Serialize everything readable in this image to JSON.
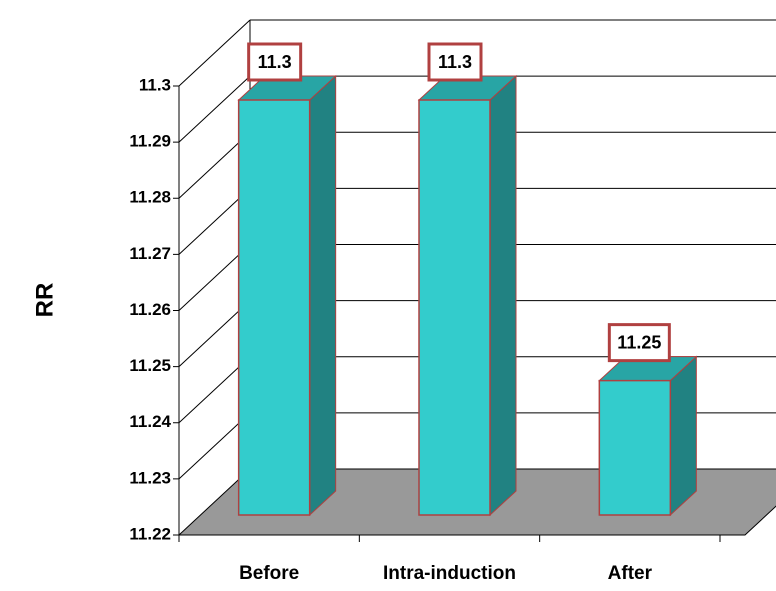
{
  "chart_data": {
    "type": "bar",
    "style": "3d-column",
    "categories": [
      "Before",
      "Intra-induction",
      "After"
    ],
    "values": [
      11.3,
      11.3,
      11.25
    ],
    "data_labels": [
      "11.3",
      "11.3",
      "11.25"
    ],
    "title": "",
    "xlabel": "",
    "ylabel": "RR",
    "ylim": [
      11.22,
      11.3
    ],
    "yticks": [
      "11.22",
      "11.23",
      "11.24",
      "11.25",
      "11.26",
      "11.27",
      "11.28",
      "11.29",
      "11.3"
    ],
    "grid": true,
    "legend": "none"
  },
  "colors": {
    "bar_front": "#33CCCC",
    "bar_side": "#218282",
    "bar_top": "#28A5A5",
    "bar_outline": "#B04040",
    "floor": "#999999",
    "gridline": "#000000",
    "label_border": "#B04040"
  }
}
